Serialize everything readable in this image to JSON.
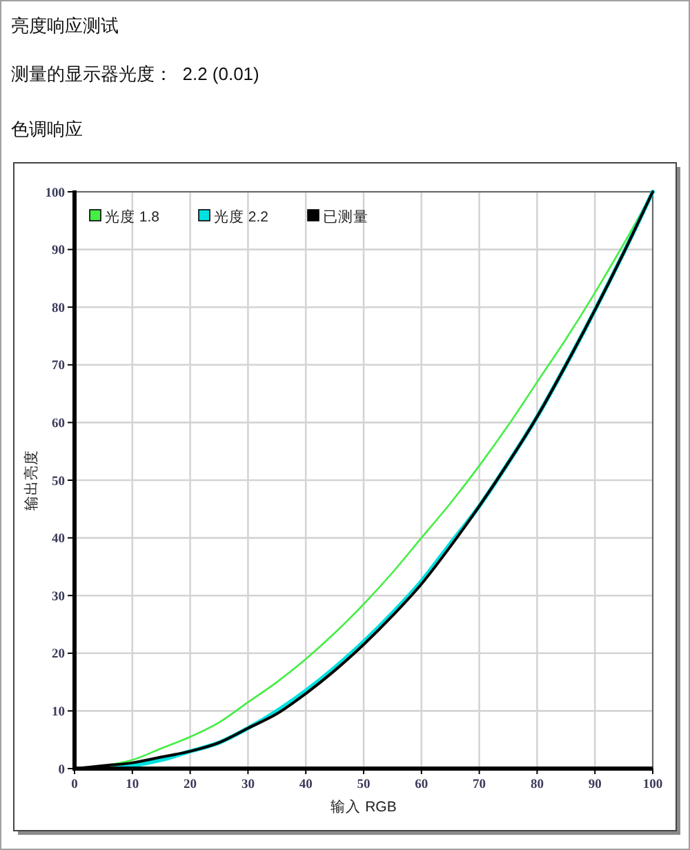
{
  "chart_data": {
    "type": "line",
    "title": "亮度响应测试",
    "subtitle": "测量的显示器光度：  2.2 (0.01)",
    "annotations": [
      "色调响应"
    ],
    "xlabel": "输入 RGB",
    "ylabel": "输出亮度",
    "x": [
      0,
      5,
      10,
      15,
      20,
      25,
      30,
      35,
      40,
      45,
      50,
      55,
      60,
      65,
      70,
      75,
      80,
      85,
      90,
      95,
      100
    ],
    "series": [
      {
        "name": "光度 1.8",
        "color": "#44ee44",
        "values": [
          0,
          0.5,
          1.5,
          3.5,
          5.5,
          8,
          11.5,
          15,
          19,
          23.5,
          28.5,
          34,
          40,
          46,
          52.5,
          59.5,
          67,
          74.5,
          82.5,
          91,
          100
        ]
      },
      {
        "name": "光度 2.2",
        "color": "#00e0e0",
        "values": [
          0,
          0,
          0.5,
          1.5,
          3,
          4.5,
          7,
          10,
          13.5,
          17.5,
          22,
          27,
          32.5,
          39,
          45.5,
          53,
          61,
          70,
          79.5,
          89.5,
          100
        ]
      },
      {
        "name": "已测量",
        "color": "#000000",
        "values": [
          0,
          0.5,
          1,
          2,
          3,
          4.5,
          7,
          9.5,
          13,
          17,
          21.5,
          26.5,
          32,
          38.5,
          45.5,
          53,
          61,
          70,
          79.5,
          89.5,
          100
        ]
      }
    ],
    "xlim": [
      0,
      100
    ],
    "ylim": [
      0,
      100
    ],
    "xticks": [
      0,
      10,
      20,
      30,
      40,
      50,
      60,
      70,
      80,
      90,
      100
    ],
    "yticks": [
      0,
      10,
      20,
      30,
      40,
      50,
      60,
      70,
      80,
      90,
      100
    ],
    "grid": true,
    "legend": "top left",
    "line_style": "solid"
  }
}
